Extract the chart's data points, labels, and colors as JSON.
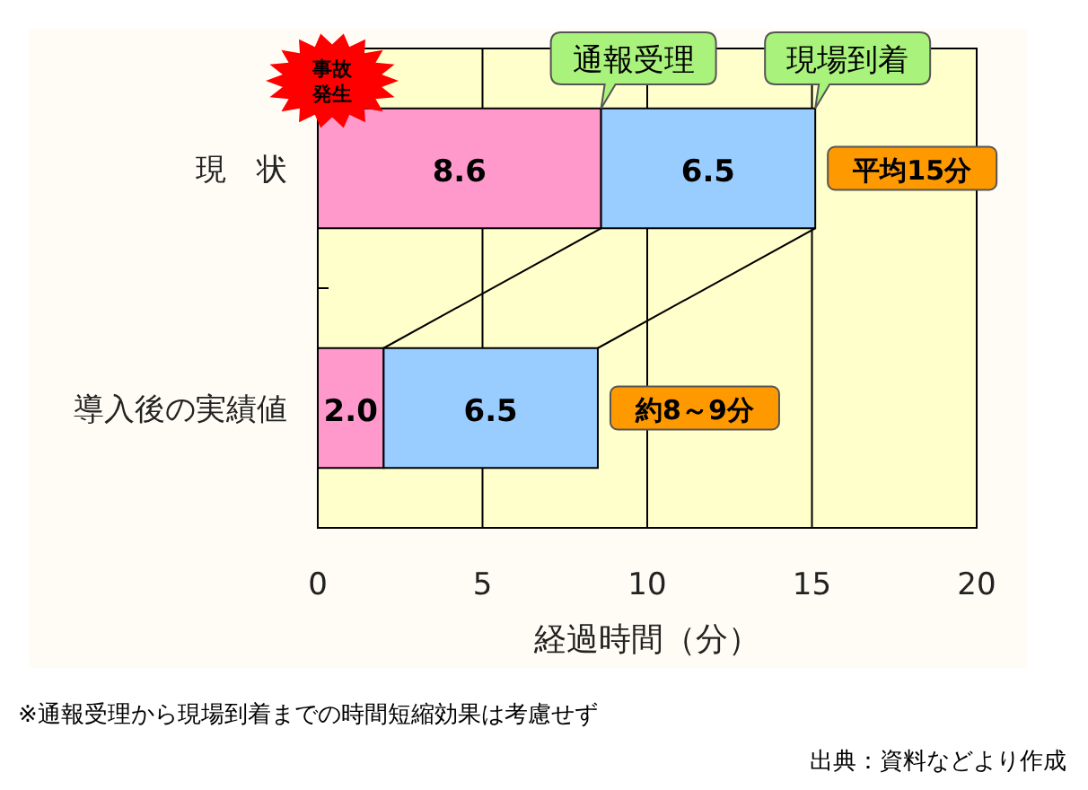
{
  "chart_data": {
    "type": "bar",
    "orientation": "horizontal",
    "stacked": true,
    "categories": [
      "現　状",
      "導入後の実績値"
    ],
    "series": [
      {
        "color": "#ff99cc",
        "values": [
          8.6,
          2.0
        ],
        "value_labels": [
          "8.6",
          "2.0"
        ]
      },
      {
        "color": "#99ccff",
        "values": [
          6.5,
          6.5
        ],
        "value_labels": [
          "6.5",
          "6.5"
        ]
      }
    ],
    "xlabel": "経過時間（分）",
    "xlim": [
      0,
      20
    ],
    "xticks": [
      0,
      5,
      10,
      15,
      20
    ],
    "grid": "x",
    "annotations": [
      "事故発生",
      "通報受理",
      "現場到着",
      "平均15分",
      "約8～9分",
      "※通報受理から現場到着までの時間短縮効果は考慮せず",
      "出典：資料などより作成"
    ]
  }
}
